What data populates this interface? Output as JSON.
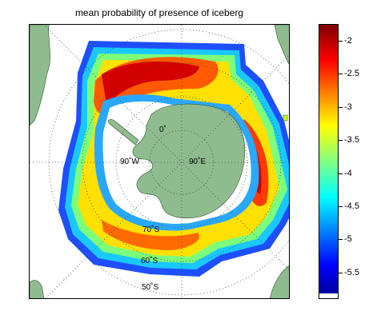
{
  "map": {
    "title": "mean probability of presence of iceberg",
    "projection": "south polar stereographic",
    "longitude_labels": [
      "0˚",
      "90˚W",
      "90˚E"
    ],
    "latitude_labels": [
      "70˚S",
      "60˚S",
      "50˚S"
    ],
    "colors": {
      "land": "#8fbc8f",
      "ocean": "#ffffff",
      "graticule": "#444444"
    }
  },
  "colorbar": {
    "ticks": [
      "-2",
      "-2.5",
      "-3",
      "-3.5",
      "-4",
      "-4.5",
      "-5",
      "-5.5"
    ],
    "range": [
      -5.9,
      -1.75
    ],
    "colormap": "jet",
    "high_color": "#7f0000",
    "low_color": "#00008f"
  }
}
